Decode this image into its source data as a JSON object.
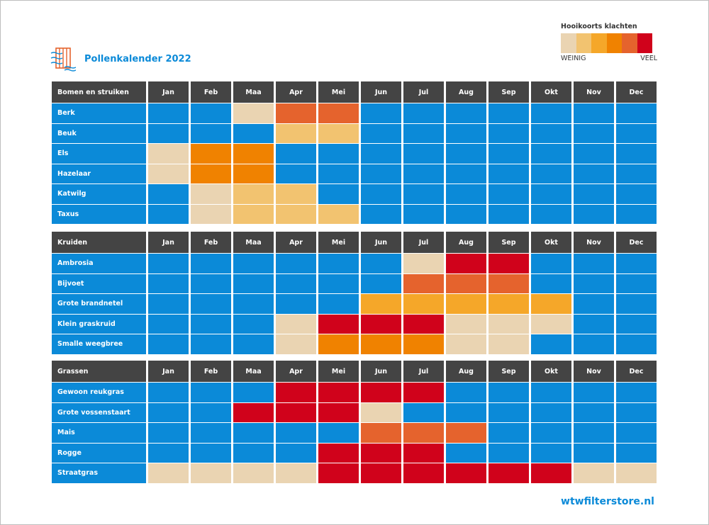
{
  "header": {
    "title": "Pollenkalender 2022",
    "logo_icon": "window-filter-logo-icon"
  },
  "legend": {
    "title": "Hooikoorts klachten",
    "low_label": "WEINIG",
    "high_label": "VEEL",
    "colors": [
      "#ead4b2",
      "#f2c370",
      "#f5a729",
      "#f08200",
      "#e5632d",
      "#d0021b"
    ]
  },
  "colors": {
    "none": "#0b8ad8",
    "header_bg": "#444444",
    "brand": "#0b8ad8",
    "1": "#ead4b2",
    "2": "#f2c370",
    "3": "#f5a729",
    "4": "#f08200",
    "5": "#e5632d",
    "6": "#d0021b"
  },
  "months": [
    "Jan",
    "Feb",
    "Maa",
    "Apr",
    "Mei",
    "Jun",
    "Jul",
    "Aug",
    "Sep",
    "Okt",
    "Nov",
    "Dec"
  ],
  "sections": [
    {
      "title": "Bomen en struiken",
      "rows": [
        {
          "name": "Berk",
          "levels": [
            0,
            0,
            1,
            5,
            5,
            0,
            0,
            0,
            0,
            0,
            0,
            0
          ]
        },
        {
          "name": "Beuk",
          "levels": [
            0,
            0,
            0,
            2,
            2,
            0,
            0,
            0,
            0,
            0,
            0,
            0
          ]
        },
        {
          "name": "Els",
          "levels": [
            1,
            4,
            4,
            0,
            0,
            0,
            0,
            0,
            0,
            0,
            0,
            0
          ]
        },
        {
          "name": "Hazelaar",
          "levels": [
            1,
            4,
            4,
            0,
            0,
            0,
            0,
            0,
            0,
            0,
            0,
            0
          ]
        },
        {
          "name": "Katwilg",
          "levels": [
            0,
            1,
            2,
            2,
            0,
            0,
            0,
            0,
            0,
            0,
            0,
            0
          ]
        },
        {
          "name": "Taxus",
          "levels": [
            0,
            1,
            2,
            2,
            2,
            0,
            0,
            0,
            0,
            0,
            0,
            0
          ]
        }
      ]
    },
    {
      "title": "Kruiden",
      "rows": [
        {
          "name": "Ambrosia",
          "levels": [
            0,
            0,
            0,
            0,
            0,
            0,
            1,
            6,
            6,
            0,
            0,
            0
          ]
        },
        {
          "name": "Bijvoet",
          "levels": [
            0,
            0,
            0,
            0,
            0,
            0,
            5,
            5,
            5,
            0,
            0,
            0
          ]
        },
        {
          "name": "Grote brandnetel",
          "levels": [
            0,
            0,
            0,
            0,
            0,
            3,
            3,
            3,
            3,
            3,
            0,
            0
          ]
        },
        {
          "name": "Klein graskruid",
          "levels": [
            0,
            0,
            0,
            1,
            6,
            6,
            6,
            1,
            1,
            1,
            0,
            0
          ]
        },
        {
          "name": "Smalle weegbree",
          "levels": [
            0,
            0,
            0,
            1,
            4,
            4,
            4,
            1,
            1,
            0,
            0,
            0
          ]
        }
      ]
    },
    {
      "title": "Grassen",
      "rows": [
        {
          "name": "Gewoon reukgras",
          "levels": [
            0,
            0,
            0,
            6,
            6,
            6,
            6,
            0,
            0,
            0,
            0,
            0
          ]
        },
        {
          "name": "Grote vossenstaart",
          "levels": [
            0,
            0,
            6,
            6,
            6,
            1,
            0,
            0,
            0,
            0,
            0,
            0
          ]
        },
        {
          "name": "Mais",
          "levels": [
            0,
            0,
            0,
            0,
            0,
            5,
            5,
            5,
            0,
            0,
            0,
            0
          ]
        },
        {
          "name": "Rogge",
          "levels": [
            0,
            0,
            0,
            0,
            6,
            6,
            6,
            0,
            0,
            0,
            0,
            0
          ]
        },
        {
          "name": "Straatgras",
          "levels": [
            1,
            1,
            1,
            1,
            6,
            6,
            6,
            6,
            6,
            6,
            1,
            1
          ]
        }
      ]
    }
  ],
  "footer": {
    "website": "wtwfilterstore.nl"
  }
}
